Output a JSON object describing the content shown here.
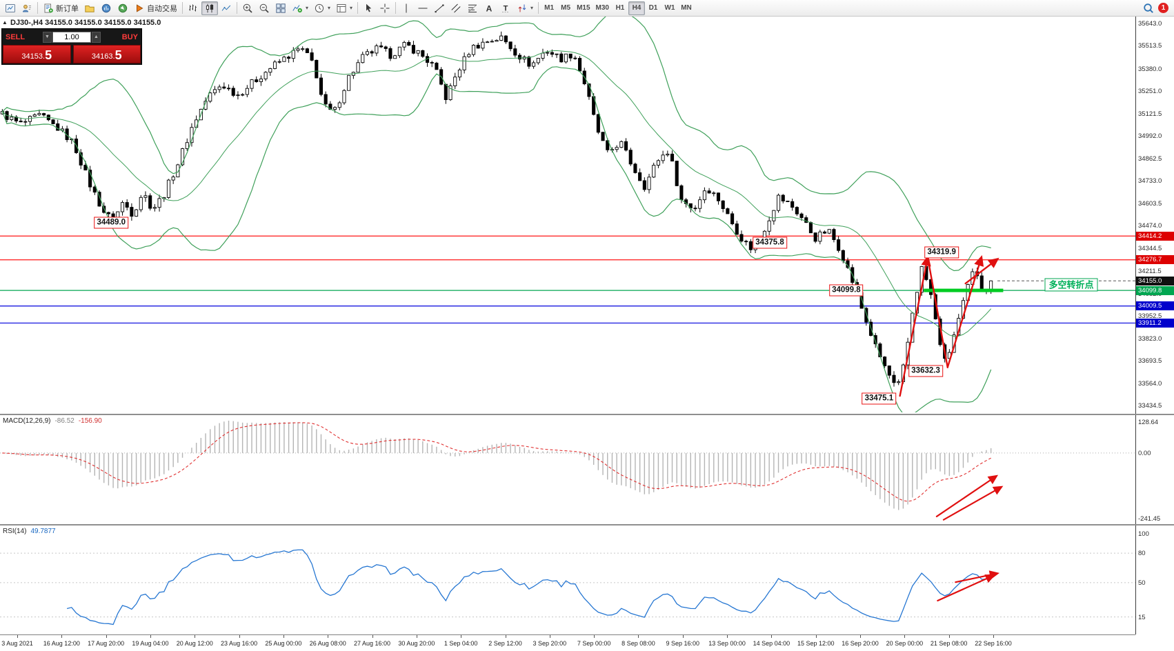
{
  "toolbar": {
    "new_order_label": "新订单",
    "autotrade_label": "自动交易",
    "timeframes": [
      "M1",
      "M5",
      "M15",
      "M30",
      "H1",
      "H4",
      "D1",
      "W1",
      "MN"
    ],
    "active_timeframe": "H4",
    "notification_count": "1"
  },
  "chart": {
    "symbol_ohlc": "DJ30-,H4 34155.0 34155.0 34155.0 34155.0",
    "turning_point_label": "多空转折点"
  },
  "one_click": {
    "sell_label": "SELL",
    "buy_label": "BUY",
    "volume": "1.00",
    "sell_price_main": "34153.",
    "sell_price_pips": "5",
    "buy_price_main": "34163.",
    "buy_price_pips": "5"
  },
  "indicators": {
    "macd": {
      "name": "MACD(12,26,9)",
      "main_value": "-86.52",
      "signal_value": "-156.90",
      "scale": [
        "128.64",
        "0.00",
        "-241.45"
      ]
    },
    "rsi": {
      "name": "RSI(14)",
      "value": "49.7877",
      "scale": [
        "100",
        "80",
        "50",
        "15"
      ],
      "levels": [
        80,
        50,
        15
      ]
    }
  },
  "colors": {
    "band_green": "#3fa05a",
    "macd_hist": "#b4b4b4",
    "macd_signal": "#e03030",
    "rsi_line": "#2576d2",
    "arrow_red": "#e01010",
    "thick_green": "#00cc22"
  },
  "chart_data": {
    "type": "candlestick",
    "symbol": "DJ30-",
    "timeframe": "H4",
    "bars": 215,
    "last_close": 34155.0,
    "price_axis": {
      "top": 35643.0,
      "bottom": 33434.5,
      "labels": [
        "35643.0",
        "35513.5",
        "35380.0",
        "35251.0",
        "35121.5",
        "34992.0",
        "34862.5",
        "34733.0",
        "34603.5",
        "34474.0",
        "34344.5",
        "34211.5",
        "34082.0",
        "33952.5",
        "33823.0",
        "33693.5",
        "33564.0",
        "33434.5"
      ]
    },
    "time_labels": [
      "3 Aug 2021",
      "16 Aug 12:00",
      "17 Aug 20:00",
      "19 Aug 04:00",
      "20 Aug 12:00",
      "23 Aug 16:00",
      "25 Aug 00:00",
      "26 Aug 08:00",
      "27 Aug 16:00",
      "30 Aug 20:00",
      "1 Sep 04:00",
      "2 Sep 12:00",
      "3 Sep 20:00",
      "7 Sep 00:00",
      "8 Sep 08:00",
      "9 Sep 16:00",
      "13 Sep 00:00",
      "14 Sep 04:00",
      "15 Sep 12:00",
      "16 Sep 20:00",
      "20 Sep 00:00",
      "21 Sep 08:00",
      "22 Sep 16:00"
    ],
    "price_path_anchors": [
      [
        0.0,
        35120
      ],
      [
        0.018,
        35060
      ],
      [
        0.038,
        35110
      ],
      [
        0.058,
        35030
      ],
      [
        0.072,
        34950
      ],
      [
        0.088,
        34720
      ],
      [
        0.102,
        34560
      ],
      [
        0.112,
        34500
      ],
      [
        0.122,
        34610
      ],
      [
        0.132,
        34540
      ],
      [
        0.142,
        34670
      ],
      [
        0.152,
        34570
      ],
      [
        0.163,
        34650
      ],
      [
        0.178,
        34840
      ],
      [
        0.193,
        35060
      ],
      [
        0.208,
        35220
      ],
      [
        0.222,
        35290
      ],
      [
        0.238,
        35230
      ],
      [
        0.255,
        35310
      ],
      [
        0.272,
        35390
      ],
      [
        0.288,
        35450
      ],
      [
        0.302,
        35500
      ],
      [
        0.315,
        35410
      ],
      [
        0.325,
        35170
      ],
      [
        0.335,
        35120
      ],
      [
        0.35,
        35330
      ],
      [
        0.365,
        35450
      ],
      [
        0.38,
        35500
      ],
      [
        0.393,
        35460
      ],
      [
        0.408,
        35520
      ],
      [
        0.422,
        35470
      ],
      [
        0.437,
        35390
      ],
      [
        0.449,
        35210
      ],
      [
        0.46,
        35360
      ],
      [
        0.474,
        35500
      ],
      [
        0.49,
        35540
      ],
      [
        0.505,
        35560
      ],
      [
        0.52,
        35470
      ],
      [
        0.535,
        35400
      ],
      [
        0.55,
        35490
      ],
      [
        0.565,
        35440
      ],
      [
        0.578,
        35470
      ],
      [
        0.59,
        35280
      ],
      [
        0.601,
        35040
      ],
      [
        0.612,
        34890
      ],
      [
        0.625,
        34960
      ],
      [
        0.638,
        34810
      ],
      [
        0.65,
        34700
      ],
      [
        0.662,
        34850
      ],
      [
        0.674,
        34910
      ],
      [
        0.687,
        34620
      ],
      [
        0.7,
        34570
      ],
      [
        0.712,
        34700
      ],
      [
        0.724,
        34630
      ],
      [
        0.737,
        34500
      ],
      [
        0.749,
        34390
      ],
      [
        0.76,
        34330
      ],
      [
        0.772,
        34470
      ],
      [
        0.785,
        34640
      ],
      [
        0.798,
        34590
      ],
      [
        0.81,
        34510
      ],
      [
        0.822,
        34400
      ],
      [
        0.835,
        34450
      ],
      [
        0.848,
        34330
      ],
      [
        0.86,
        34150
      ],
      [
        0.872,
        33950
      ],
      [
        0.884,
        33760
      ],
      [
        0.895,
        33630
      ],
      [
        0.905,
        33520
      ],
      [
        0.913,
        33690
      ],
      [
        0.921,
        33990
      ],
      [
        0.93,
        34230
      ],
      [
        0.938,
        34110
      ],
      [
        0.946,
        33860
      ],
      [
        0.954,
        33670
      ],
      [
        0.962,
        33830
      ],
      [
        0.97,
        33980
      ],
      [
        0.978,
        34150
      ],
      [
        0.984,
        34230
      ],
      [
        0.992,
        34090
      ],
      [
        1.0,
        34155
      ]
    ],
    "bollinger": {
      "period": 20,
      "deviation": 2
    },
    "macd_params": {
      "fast": 12,
      "slow": 26,
      "signal": 9
    },
    "rsi_params": {
      "period": 14
    },
    "horizontal_levels": [
      {
        "price": 34414.2,
        "color": "#ff1414"
      },
      {
        "price": 34276.7,
        "color": "#ff1414"
      },
      {
        "price": 34099.8,
        "color": "#00a651"
      },
      {
        "price": 34009.5,
        "color": "#0000dd"
      },
      {
        "price": 33911.2,
        "color": "#0000dd"
      }
    ],
    "price_boxes": [
      {
        "text": "34414.2",
        "price": 34414.2,
        "color": "#dd0000"
      },
      {
        "text": "34276.7",
        "price": 34276.7,
        "color": "#dd0000"
      },
      {
        "text": "34155.0",
        "price": 34155.0,
        "color": "#101010"
      },
      {
        "text": "34099.8",
        "price": 34099.8,
        "color": "#00a651"
      },
      {
        "text": "34009.5",
        "price": 34009.5,
        "color": "#0000cc"
      },
      {
        "text": "33911.2",
        "price": 33911.2,
        "color": "#0000cc"
      }
    ],
    "callouts": [
      {
        "text": "34489.0",
        "price": 34489.0,
        "t": 0.112
      },
      {
        "text": "34375.8",
        "price": 34375.8,
        "t": 0.775
      },
      {
        "text": "34319.9",
        "price": 34319.9,
        "t": 0.948
      },
      {
        "text": "34099.8",
        "price": 34099.8,
        "t": 0.852
      },
      {
        "text": "33632.3",
        "price": 33632.3,
        "t": 0.932
      },
      {
        "text": "33475.1",
        "price": 33475.1,
        "t": 0.885
      }
    ],
    "thick_segment": {
      "price": 34099.8,
      "t1": 0.93,
      "t2": 1.01
    },
    "trend_arrows": {
      "main": [
        {
          "from": [
            0.906,
            33490
          ],
          "to": [
            0.934,
            34290
          ],
          "head": true
        },
        {
          "from": [
            0.934,
            34290
          ],
          "to": [
            0.954,
            33655
          ],
          "head": false
        },
        {
          "from": [
            0.954,
            33655
          ],
          "to": [
            0.988,
            34290
          ],
          "head": true
        },
        {
          "from": [
            0.972,
            34140
          ],
          "to": [
            1.004,
            34280
          ],
          "head": true
        }
      ],
      "macd": [
        {
          "from": [
            0.943,
            0.93
          ],
          "to": [
            1.003,
            0.56
          ]
        },
        {
          "from": [
            0.95,
            0.96
          ],
          "to": [
            1.008,
            0.66
          ]
        }
      ],
      "rsi": [
        {
          "from": [
            0.944,
            0.69
          ],
          "to": [
            1.0,
            0.46
          ]
        },
        {
          "from": [
            0.962,
            0.52
          ],
          "to": [
            1.004,
            0.44
          ]
        }
      ]
    }
  }
}
